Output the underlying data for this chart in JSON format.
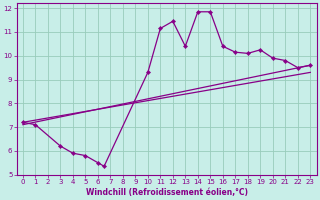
{
  "xlabel": "Windchill (Refroidissement éolien,°C)",
  "background_color": "#c8eee8",
  "line_color": "#880088",
  "grid_color": "#99ccbb",
  "xlim": [
    -0.5,
    23.5
  ],
  "ylim": [
    5,
    12.2
  ],
  "yticks": [
    5,
    6,
    7,
    8,
    9,
    10,
    11,
    12
  ],
  "xticks": [
    0,
    1,
    2,
    3,
    4,
    5,
    6,
    7,
    8,
    9,
    10,
    11,
    12,
    13,
    14,
    15,
    16,
    17,
    18,
    19,
    20,
    21,
    22,
    23
  ],
  "series1_x": [
    0,
    1,
    3,
    4,
    5,
    6,
    6.5,
    10,
    11,
    12,
    13,
    14,
    15,
    16,
    17,
    18,
    19,
    20,
    21,
    22,
    23
  ],
  "series1_y": [
    7.2,
    7.1,
    6.2,
    5.9,
    5.8,
    5.5,
    5.35,
    9.3,
    11.15,
    11.45,
    10.4,
    11.85,
    11.85,
    10.4,
    10.15,
    10.1,
    10.25,
    9.9,
    9.8,
    9.5,
    9.6
  ],
  "series2_x": [
    0,
    23
  ],
  "series2_y": [
    7.1,
    9.6
  ],
  "series3_x": [
    0,
    23
  ],
  "series3_y": [
    7.2,
    9.3
  ],
  "figsize": [
    3.2,
    2.0
  ],
  "dpi": 100,
  "spine_color": "#880088",
  "tick_color": "#880088",
  "xlabel_color": "#880088",
  "axis_bg": "#c8eee8",
  "border_color": "#880088"
}
